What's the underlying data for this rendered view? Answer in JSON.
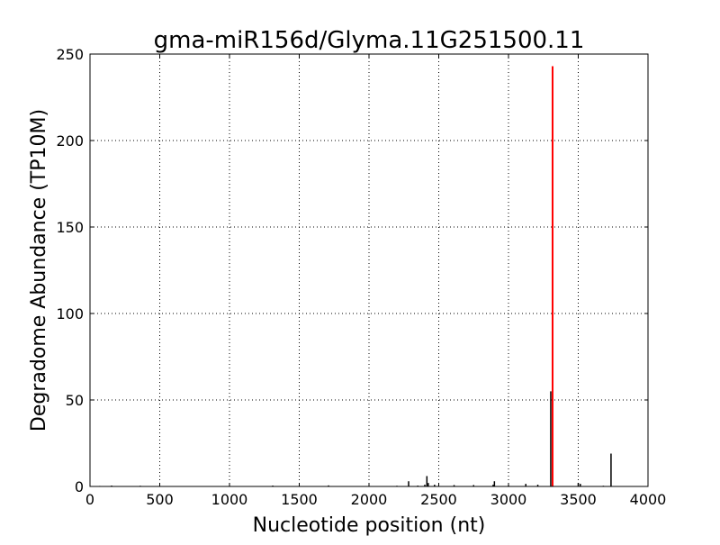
{
  "chart_data": {
    "type": "bar",
    "title": "gma-miR156d/Glyma.11G251500.11",
    "xlabel": "Nucleotide position (nt)",
    "ylabel": "Degradome Abundance (TP10M)",
    "xlim": [
      0,
      4000
    ],
    "ylim": [
      0,
      250
    ],
    "xticks": [
      0,
      500,
      1000,
      1500,
      2000,
      2500,
      3000,
      3500,
      4000
    ],
    "yticks": [
      0,
      50,
      100,
      150,
      200,
      250
    ],
    "grid": true,
    "series": [
      {
        "color": "#000000",
        "points": [
          {
            "x": 70,
            "y": 0.3
          },
          {
            "x": 155,
            "y": 0.5
          },
          {
            "x": 360,
            "y": 0.4
          },
          {
            "x": 1310,
            "y": 0.5
          },
          {
            "x": 1710,
            "y": 0.6
          },
          {
            "x": 2200,
            "y": 0.4
          },
          {
            "x": 2284,
            "y": 3
          },
          {
            "x": 2350,
            "y": 0.5
          },
          {
            "x": 2400,
            "y": 1
          },
          {
            "x": 2415,
            "y": 6
          },
          {
            "x": 2425,
            "y": 2
          },
          {
            "x": 2470,
            "y": 1
          },
          {
            "x": 2610,
            "y": 0.8
          },
          {
            "x": 2750,
            "y": 0.8
          },
          {
            "x": 2890,
            "y": 1
          },
          {
            "x": 2899,
            "y": 3
          },
          {
            "x": 3000,
            "y": 0.5
          },
          {
            "x": 3124,
            "y": 1.5
          },
          {
            "x": 3210,
            "y": 1
          },
          {
            "x": 3303,
            "y": 55
          },
          {
            "x": 3500,
            "y": 2
          },
          {
            "x": 3515,
            "y": 1.5
          },
          {
            "x": 3680,
            "y": 0.4
          },
          {
            "x": 3735,
            "y": 19
          }
        ]
      },
      {
        "color": "#ff0000",
        "points": [
          {
            "x": 3316,
            "y": 243
          }
        ]
      }
    ]
  }
}
